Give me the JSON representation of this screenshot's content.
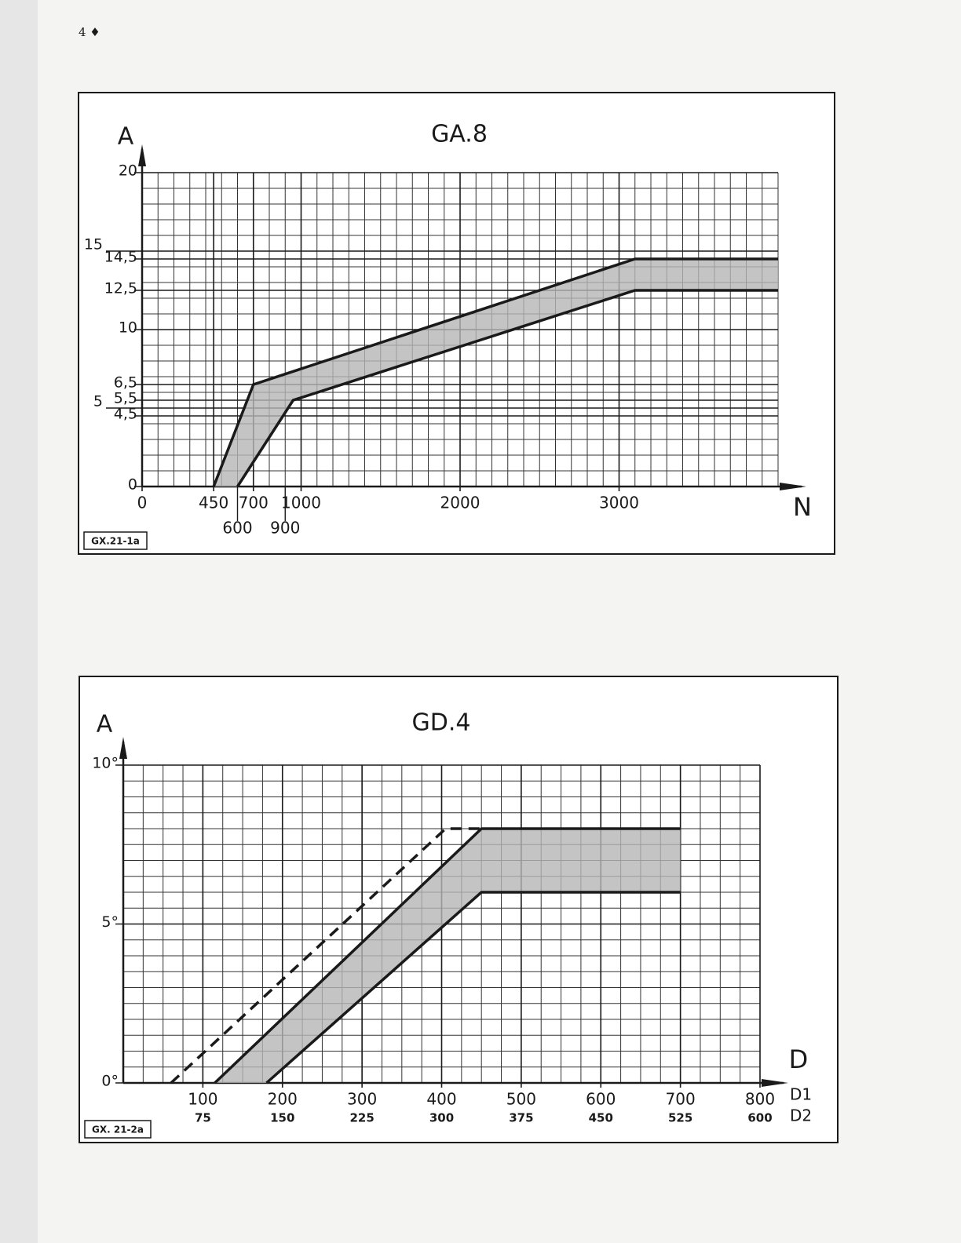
{
  "header": {
    "page": "4 ♦"
  },
  "chart_data": [
    {
      "type": "line",
      "title": "GA.8",
      "y_label": "A",
      "x_label": "N",
      "code": "GX.21-1a",
      "xlim": [
        0,
        4000
      ],
      "ylim": [
        0,
        20
      ],
      "xticks": [
        0,
        450,
        700,
        1000,
        2000,
        3000
      ],
      "xticks_lower": [
        600,
        900
      ],
      "yticks": [
        0,
        {
          "value": 4.5,
          "label": "4,5"
        },
        5,
        {
          "value": 5.5,
          "label": "5,5"
        },
        {
          "value": 6.5,
          "label": "6,5"
        },
        10,
        {
          "value": 12.5,
          "label": "12,5"
        },
        {
          "value": 14.5,
          "label": "14,5"
        },
        15,
        20
      ],
      "minor_grid": {
        "x": 100,
        "y": 1
      },
      "fill_between": true,
      "fill_color": "#b5b5b5",
      "series": [
        {
          "color": "#1a1a1a",
          "x": [
            450,
            700,
            3100,
            4000
          ],
          "values": [
            0,
            6.5,
            14.5,
            14.5
          ]
        },
        {
          "color": "#1a1a1a",
          "x": [
            600,
            950,
            3100,
            4000
          ],
          "values": [
            0,
            5.5,
            12.5,
            12.5
          ]
        }
      ]
    },
    {
      "type": "line",
      "title": "GD.4",
      "y_label": "A",
      "x_label": "D",
      "x1_name": "D1",
      "x2_name": "D2",
      "code": "GX. 21-2a",
      "xlim": [
        0,
        800
      ],
      "x2lim": [
        0,
        600
      ],
      "ylim": [
        0,
        10
      ],
      "xticks": [
        100,
        200,
        300,
        400,
        500,
        600,
        700,
        800
      ],
      "x2ticks": [
        75,
        150,
        225,
        300,
        375,
        450,
        525,
        600
      ],
      "yticks": [
        {
          "value": 0,
          "label": "0°"
        },
        {
          "value": 5,
          "label": "5°"
        },
        {
          "value": 10,
          "label": "10°"
        }
      ],
      "minor_grid": {
        "x": 25,
        "y": 0.5
      },
      "fill_between": true,
      "fill_color": "#b5b5b5",
      "series": [
        {
          "color": "#1a1a1a",
          "x": [
            115,
            450,
            700
          ],
          "values": [
            0,
            8,
            8
          ]
        },
        {
          "color": "#1a1a1a",
          "x": [
            180,
            450,
            700
          ],
          "values": [
            0,
            6,
            6
          ]
        },
        {
          "color": "#1a1a1a",
          "dash": true,
          "x": [
            60,
            405,
            450
          ],
          "values": [
            0,
            8,
            8
          ]
        }
      ]
    }
  ]
}
